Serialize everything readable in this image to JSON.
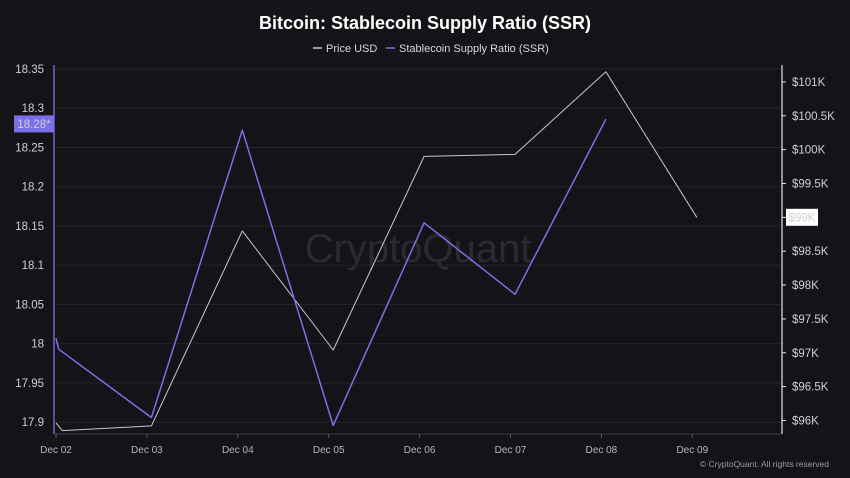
{
  "chart_data": {
    "type": "line",
    "title": "Bitcoin: Stablecoin Supply Ratio (SSR)",
    "watermark": "CryptoQuant",
    "copyright": "© CryptoQuant. All rights reserved",
    "legend_position": "top-center",
    "grid": true,
    "categories": [
      "Dec 02",
      "Dec 03",
      "Dec 04",
      "Dec 05",
      "Dec 06",
      "Dec 07",
      "Dec 08",
      "Dec 09"
    ],
    "left_axis": {
      "ticks": [
        "18.35",
        "18.3",
        "18.25",
        "18.2",
        "18.15",
        "18.1",
        "18.05",
        "18",
        "17.95",
        "17.9"
      ],
      "ylim": [
        17.885,
        18.355
      ],
      "current_label": "18.28*",
      "current_value": 18.28,
      "color": "#7b6fe8"
    },
    "right_axis": {
      "ticks": [
        "$101K",
        "$100.5K",
        "$100K",
        "$99.5K",
        "$99K",
        "$98.5K",
        "$98K",
        "$97.5K",
        "$97K",
        "$96.5K",
        "$96K"
      ],
      "ylim": [
        95800,
        101250
      ],
      "current_label": "$99K",
      "current_value": 99000
    },
    "series": [
      {
        "name": "Price USD",
        "axis": "right",
        "color": "#c8c8cc",
        "points": [
          [
            0.0,
            95962
          ],
          [
            0.07,
            95850
          ],
          [
            1.05,
            95920
          ],
          [
            2.05,
            98800
          ],
          [
            3.05,
            97040
          ],
          [
            4.05,
            99900
          ],
          [
            5.05,
            99930
          ],
          [
            6.05,
            101150
          ],
          [
            7.05,
            99000
          ]
        ]
      },
      {
        "name": "Stablecoin Supply Ratio (SSR)",
        "axis": "left",
        "color": "#7b6fe8",
        "points": [
          [
            0.0,
            18.007
          ],
          [
            0.03,
            17.993
          ],
          [
            1.05,
            17.906
          ],
          [
            2.05,
            18.272
          ],
          [
            3.05,
            17.896
          ],
          [
            4.05,
            18.154
          ],
          [
            5.05,
            18.063
          ],
          [
            6.05,
            18.286
          ]
        ]
      }
    ]
  }
}
